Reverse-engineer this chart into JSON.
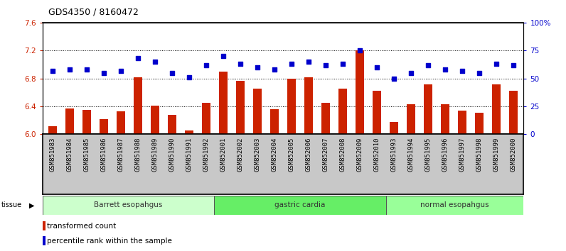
{
  "title": "GDS4350 / 8160472",
  "samples": [
    "GSM851983",
    "GSM851984",
    "GSM851985",
    "GSM851986",
    "GSM851987",
    "GSM851988",
    "GSM851989",
    "GSM851990",
    "GSM851991",
    "GSM851992",
    "GSM852001",
    "GSM852002",
    "GSM852003",
    "GSM852004",
    "GSM852005",
    "GSM852006",
    "GSM852007",
    "GSM852008",
    "GSM852009",
    "GSM852010",
    "GSM851993",
    "GSM851994",
    "GSM851995",
    "GSM851996",
    "GSM851997",
    "GSM851998",
    "GSM851999",
    "GSM852000"
  ],
  "bar_values": [
    6.12,
    6.37,
    6.35,
    6.22,
    6.33,
    6.82,
    6.41,
    6.28,
    6.05,
    6.45,
    6.9,
    6.77,
    6.65,
    6.36,
    6.8,
    6.82,
    6.45,
    6.65,
    7.2,
    6.62,
    6.18,
    6.43,
    6.72,
    6.43,
    6.34,
    6.31,
    6.72,
    6.62
  ],
  "percentile_values": [
    57,
    58,
    58,
    55,
    57,
    68,
    65,
    55,
    51,
    62,
    70,
    63,
    60,
    58,
    63,
    65,
    62,
    63,
    75,
    60,
    50,
    55,
    62,
    58,
    57,
    55,
    63,
    62
  ],
  "groups": [
    {
      "label": "Barrett esopahgus",
      "start": 0,
      "end": 10,
      "color": "#ccffcc"
    },
    {
      "label": "gastric cardia",
      "start": 10,
      "end": 20,
      "color": "#66ee66"
    },
    {
      "label": "normal esopahgus",
      "start": 20,
      "end": 28,
      "color": "#99ff99"
    }
  ],
  "ylim_left": [
    6.0,
    7.6
  ],
  "ylim_right": [
    0,
    100
  ],
  "yticks_left": [
    6.0,
    6.4,
    6.8,
    7.2,
    7.6
  ],
  "yticks_right": [
    0,
    25,
    50,
    75,
    100
  ],
  "ytick_labels_right": [
    "0",
    "25",
    "50",
    "75",
    "100%"
  ],
  "bar_color": "#cc2200",
  "dot_color": "#0000cc",
  "grid_color": "#000000",
  "bg_color": "#ffffff",
  "title_fontsize": 9,
  "tick_label_fontsize": 6.5,
  "axis_label_color_left": "#cc2200",
  "axis_label_color_right": "#0000cc",
  "xticklabel_bg": "#c8c8c8"
}
